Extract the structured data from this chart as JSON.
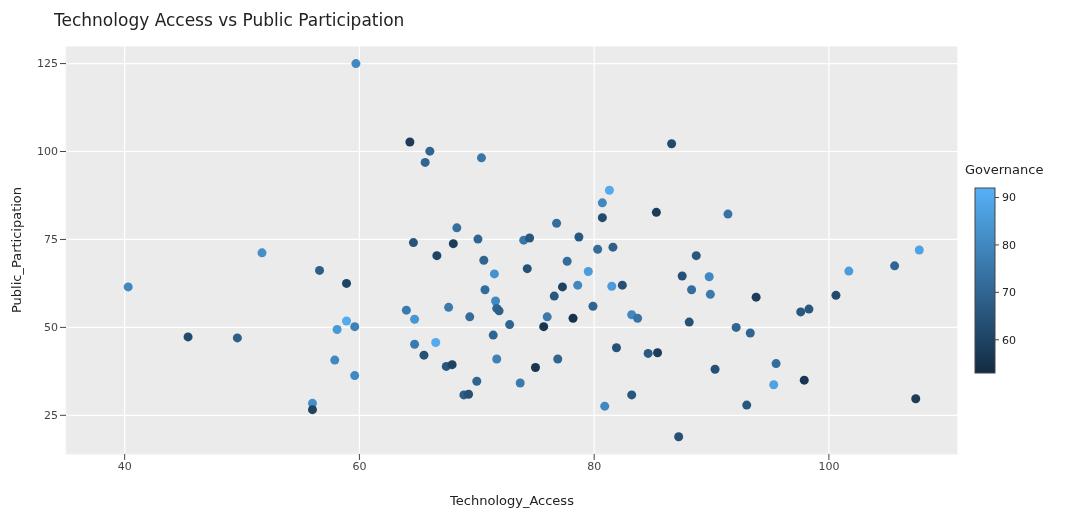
{
  "chart_data": {
    "type": "scatter",
    "title": "Technology Access vs Public Participation",
    "xlabel": "Technology_Access",
    "ylabel": "Public_Participation",
    "clabel": "Governance",
    "xlim": [
      35,
      111
    ],
    "ylim": [
      14,
      130
    ],
    "xticks": [
      40,
      60,
      80,
      100
    ],
    "yticks": [
      25,
      50,
      75,
      100,
      125
    ],
    "clim": [
      53,
      92
    ],
    "cticks": [
      60,
      70,
      80,
      90
    ],
    "grid": true,
    "marker": "circle",
    "x": [
      40.3,
      45.4,
      49.6,
      51.7,
      56.0,
      56.0,
      56.6,
      58.9,
      58.9,
      58.1,
      59.6,
      57.9,
      59.6,
      59.7,
      64.3,
      66.0,
      65.6,
      70.4,
      86.6,
      81.3,
      80.7,
      80.7,
      85.3,
      68.3,
      76.8,
      64.6,
      68.0,
      70.1,
      74.0,
      74.5,
      78.7,
      80.3,
      81.6,
      88.7,
      66.6,
      91.4,
      107.7,
      70.6,
      71.5,
      74.3,
      77.7,
      79.5,
      70.7,
      71.6,
      71.7,
      71.9,
      77.3,
      78.6,
      76.6,
      79.9,
      81.5,
      82.4,
      64.0,
      64.7,
      67.6,
      69.4,
      72.8,
      76.0,
      75.7,
      78.2,
      83.2,
      83.7,
      64.7,
      66.5,
      65.5,
      71.4,
      71.7,
      67.4,
      67.9,
      75.0,
      76.9,
      70.0,
      73.7,
      68.9,
      69.3,
      81.9,
      84.6,
      85.4,
      83.2,
      80.9,
      87.2,
      87.5,
      88.3,
      88.1,
      89.8,
      89.9,
      93.8,
      97.6,
      98.3,
      100.6,
      101.7,
      105.6,
      92.1,
      93.3,
      90.3,
      95.5,
      95.3,
      97.9,
      93.0,
      107.4
    ],
    "values": [
      61.5,
      47.3,
      47.0,
      71.2,
      28.4,
      26.6,
      66.2,
      62.5,
      51.8,
      49.4,
      50.2,
      40.7,
      36.3,
      125,
      102.7,
      100.1,
      96.9,
      98.2,
      102.2,
      89.0,
      85.4,
      81.2,
      82.7,
      78.3,
      79.6,
      74.1,
      73.8,
      75.1,
      74.8,
      75.4,
      75.7,
      72.2,
      72.8,
      70.4,
      70.4,
      82.2,
      72.0,
      69.1,
      65.2,
      66.7,
      68.8,
      65.9,
      60.7,
      57.5,
      55.4,
      54.7,
      61.5,
      62.0,
      58.9,
      56.0,
      61.7,
      62.0,
      54.9,
      52.3,
      55.7,
      53.0,
      50.8,
      53.0,
      50.2,
      52.6,
      53.6,
      52.6,
      45.2,
      45.7,
      42.1,
      47.8,
      41.0,
      38.9,
      39.4,
      38.6,
      41.0,
      34.7,
      34.2,
      30.8,
      31.0,
      44.2,
      42.6,
      42.8,
      30.8,
      27.6,
      18.9,
      64.6,
      60.7,
      51.5,
      64.4,
      59.4,
      58.6,
      54.4,
      55.2,
      59.1,
      66.0,
      67.5,
      50.0,
      48.4,
      38.1,
      39.7,
      33.7,
      35.0,
      27.9,
      29.7
    ],
    "cvalues": [
      80,
      62,
      68,
      82,
      82,
      60,
      68,
      60,
      90,
      85,
      78,
      80,
      80,
      80,
      58,
      70,
      70,
      75,
      62,
      90,
      80,
      62,
      58,
      73,
      72,
      65,
      58,
      70,
      75,
      66,
      66,
      72,
      68,
      66,
      60,
      74,
      88,
      70,
      83,
      64,
      72,
      86,
      72,
      80,
      70,
      68,
      60,
      80,
      66,
      70,
      86,
      64,
      76,
      84,
      76,
      72,
      70,
      76,
      56,
      55,
      80,
      74,
      76,
      90,
      64,
      70,
      78,
      66,
      60,
      56,
      70,
      70,
      76,
      68,
      64,
      64,
      67,
      58,
      66,
      80,
      64,
      64,
      72,
      64,
      80,
      76,
      58,
      66,
      66,
      62,
      86,
      70,
      70,
      70,
      64,
      72,
      88,
      56,
      66,
      58
    ]
  }
}
